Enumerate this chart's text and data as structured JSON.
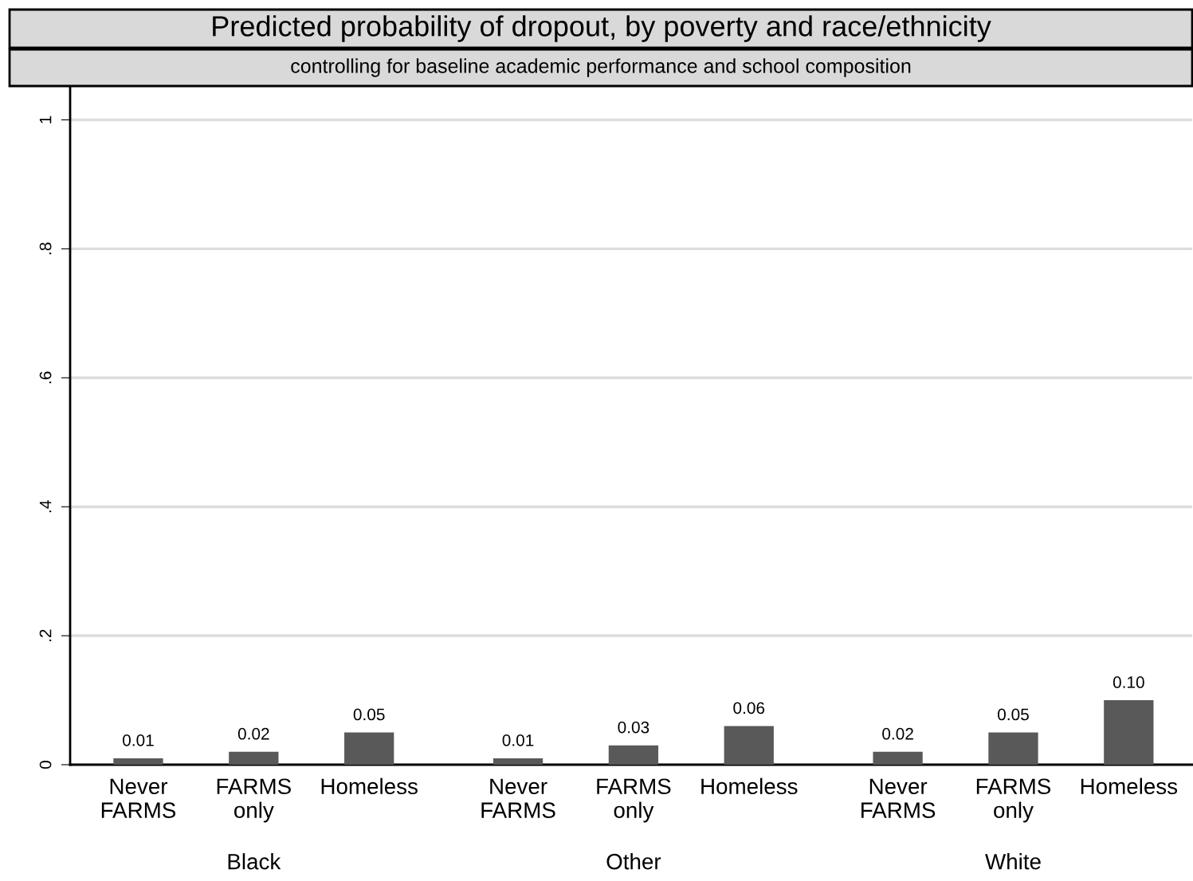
{
  "chart_data": {
    "type": "bar",
    "title": "Predicted probability of dropout, by poverty and race/ethnicity",
    "subtitle": "controlling for baseline academic performance and school composition",
    "categories": [
      "Never FARMS",
      "FARMS only",
      "Homeless",
      "Never FARMS",
      "FARMS only",
      "Homeless",
      "Never FARMS",
      "FARMS only",
      "Homeless"
    ],
    "values": [
      0.01,
      0.02,
      0.05,
      0.01,
      0.03,
      0.06,
      0.02,
      0.05,
      0.1
    ],
    "value_labels": [
      "0.01",
      "0.02",
      "0.05",
      "0.01",
      "0.03",
      "0.06",
      "0.02",
      "0.05",
      "0.10"
    ],
    "color": "#595959",
    "annotations": [
      "Black",
      "Other",
      "White"
    ],
    "ylim": [
      0,
      1.05
    ],
    "yticks": [
      0,
      {
        "value": 0.2,
        "label": ".2"
      },
      {
        "value": 0.4,
        "label": ".4"
      },
      {
        "value": 0.6,
        "label": ".6"
      },
      {
        "value": 0.8,
        "label": ".8"
      },
      1
    ],
    "grid": "y",
    "legend": false
  }
}
